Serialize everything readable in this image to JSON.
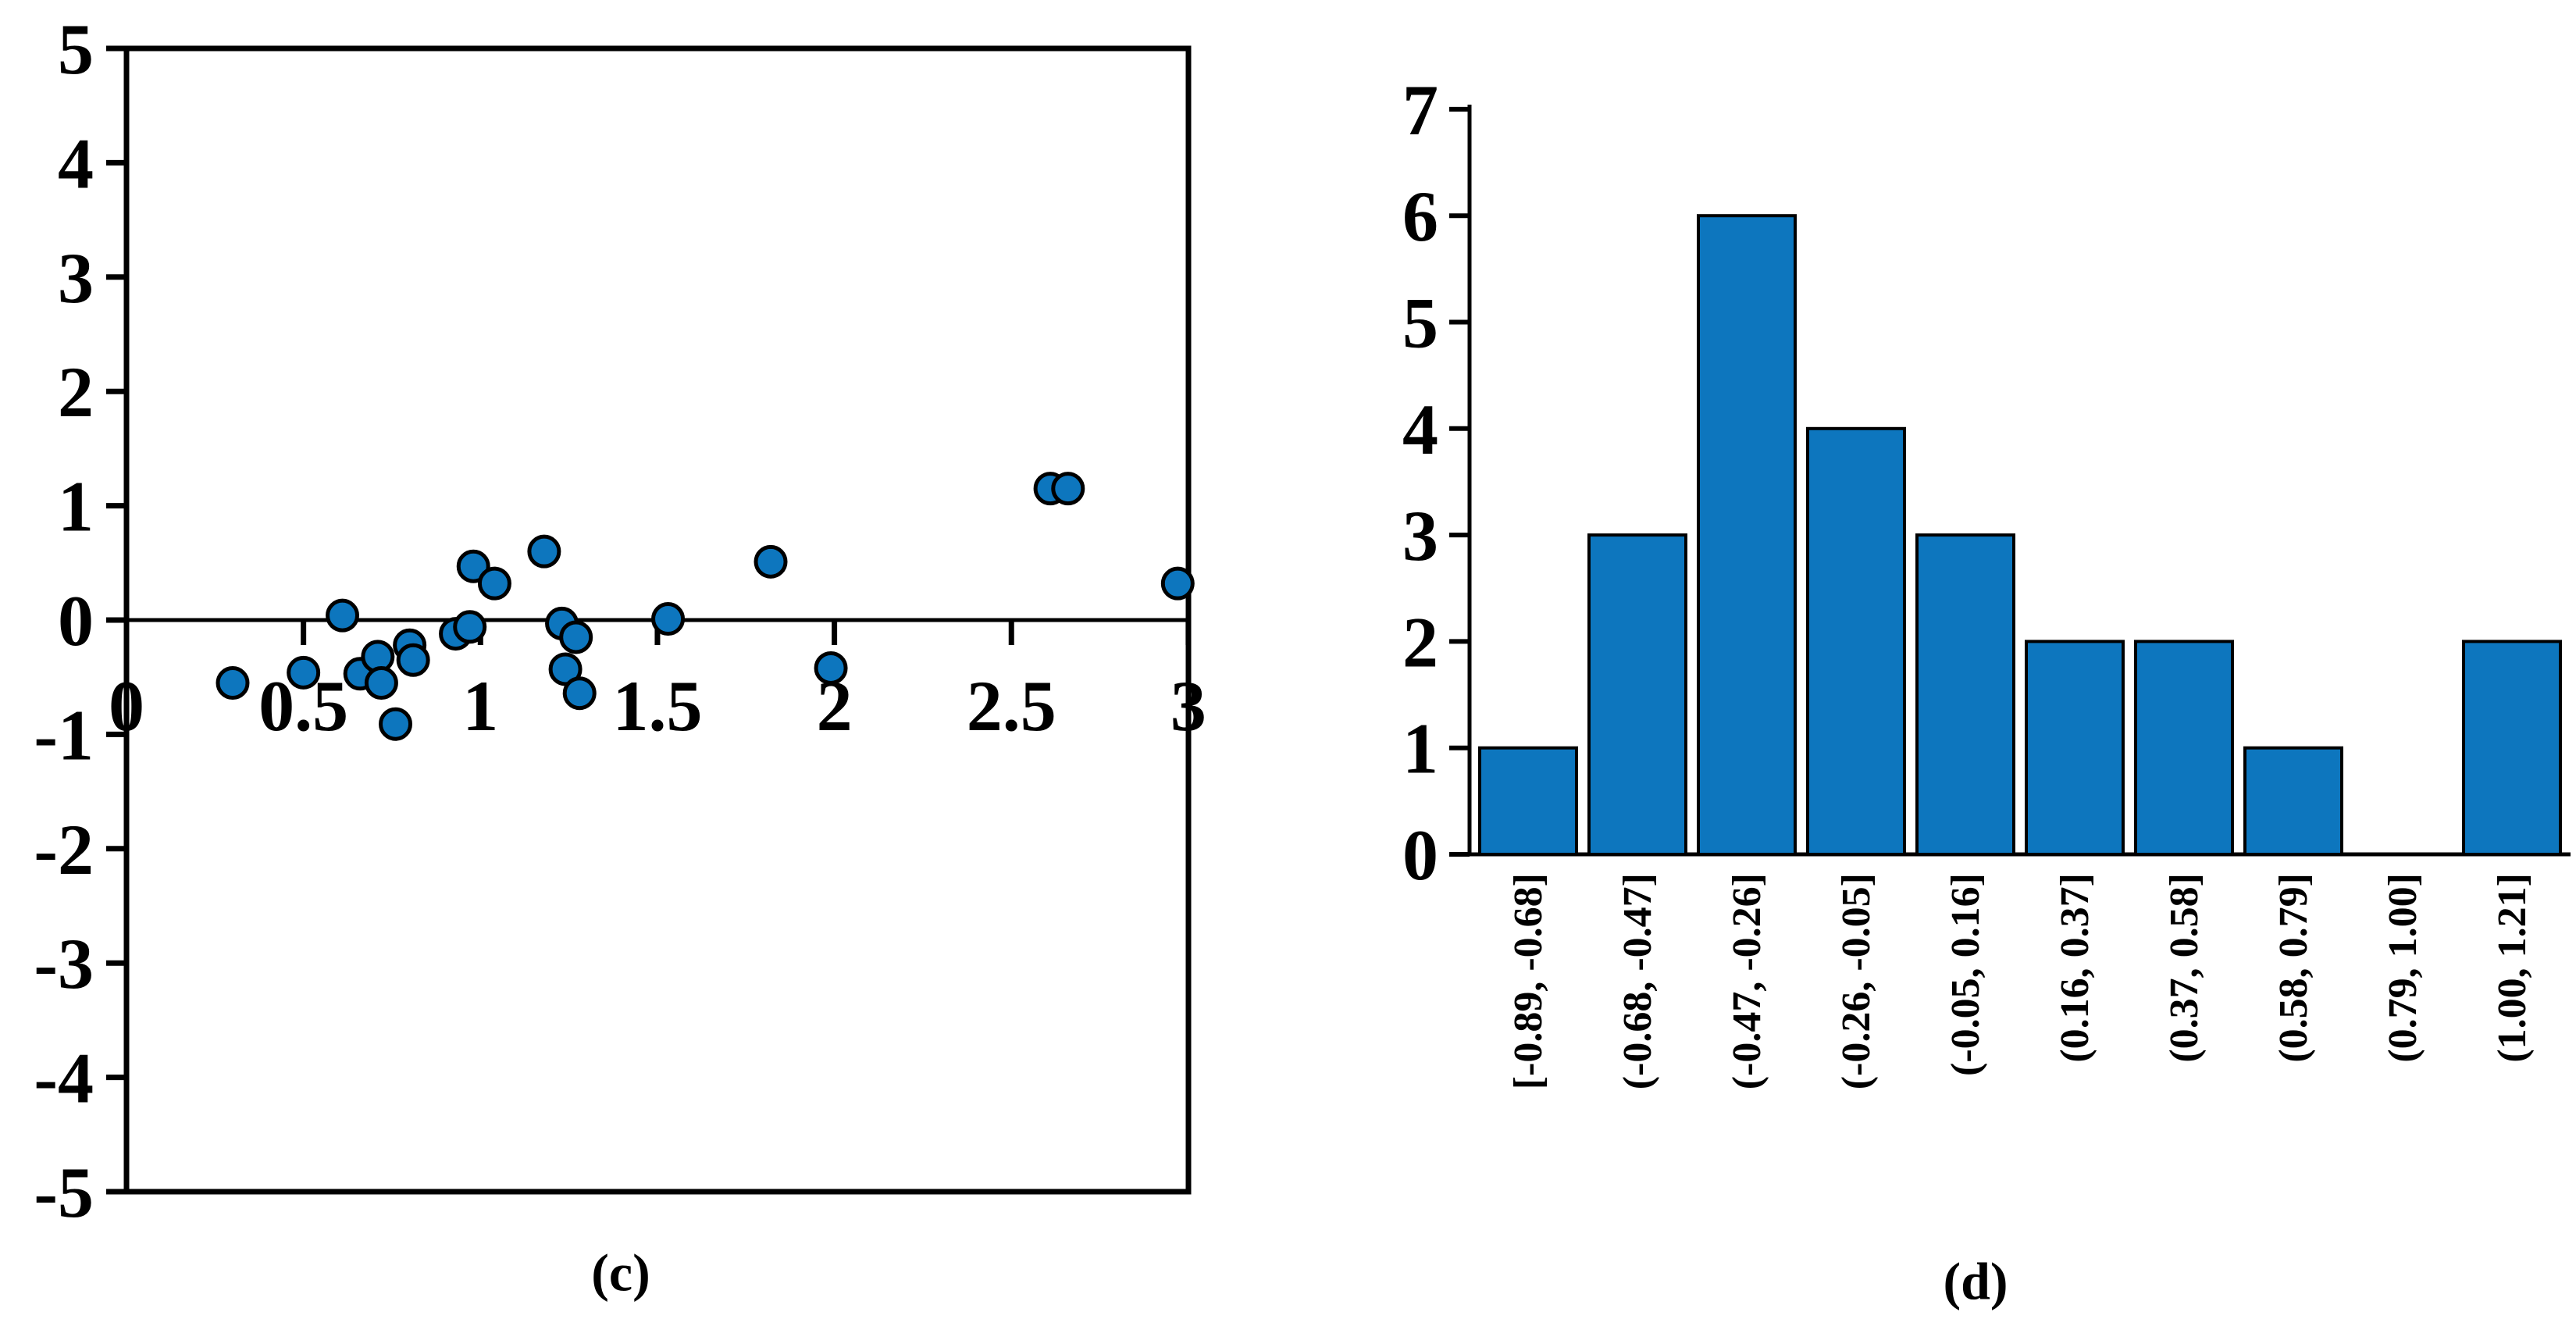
{
  "figure": {
    "background": "#ffffff",
    "captions": {
      "c": "(c)",
      "d": "(d)"
    }
  },
  "colors": {
    "data_blue": "#0D76BE",
    "outline": "#000000",
    "axis": "#000000"
  },
  "chart_data": [
    {
      "type": "scatter",
      "panel": "c",
      "title": "",
      "xlabel": "",
      "ylabel": "",
      "xlim": [
        0,
        3
      ],
      "ylim": [
        -5,
        5
      ],
      "grid": false,
      "frame": "box",
      "zero_line": true,
      "marker": "circle",
      "marker_color": "#0D76BE",
      "marker_edge_color": "#000000",
      "x_ticks": [
        0,
        0.5,
        1,
        1.5,
        2,
        2.5,
        3
      ],
      "x_tick_labels": [
        "0",
        "0.5",
        "1",
        "1.5",
        "2",
        "2.5",
        "3"
      ],
      "y_ticks": [
        5,
        4,
        3,
        2,
        1,
        0,
        -1,
        -2,
        -3,
        -4,
        -5
      ],
      "y_tick_labels": [
        "5",
        "4",
        "3",
        "2",
        "1",
        "0",
        "-1",
        "-2",
        "-3",
        "-4",
        "-5"
      ],
      "points": [
        [
          0.3,
          -0.55
        ],
        [
          0.5,
          -0.46
        ],
        [
          0.61,
          0.04
        ],
        [
          0.66,
          -0.47
        ],
        [
          0.71,
          -0.32
        ],
        [
          0.72,
          -0.55
        ],
        [
          0.8,
          -0.22
        ],
        [
          0.81,
          -0.35
        ],
        [
          0.76,
          -0.91
        ],
        [
          0.93,
          -0.12
        ],
        [
          0.97,
          -0.06
        ],
        [
          0.98,
          0.47
        ],
        [
          1.04,
          0.32
        ],
        [
          1.18,
          0.6
        ],
        [
          1.23,
          -0.03
        ],
        [
          1.27,
          -0.15
        ],
        [
          1.24,
          -0.43
        ],
        [
          1.28,
          -0.64
        ],
        [
          1.53,
          0.01
        ],
        [
          1.82,
          0.51
        ],
        [
          1.99,
          -0.42
        ],
        [
          2.61,
          1.15
        ],
        [
          2.66,
          1.15
        ],
        [
          2.97,
          0.32
        ]
      ]
    },
    {
      "type": "bar",
      "panel": "d",
      "title": "",
      "xlabel": "",
      "ylabel": "",
      "ylim": [
        0,
        7
      ],
      "grid": false,
      "bar_color": "#0D76BE",
      "bar_edge_color": "#000000",
      "y_ticks": [
        0,
        1,
        2,
        3,
        4,
        5,
        6,
        7
      ],
      "y_tick_labels": [
        "0",
        "1",
        "2",
        "3",
        "4",
        "5",
        "6",
        "7"
      ],
      "categories": [
        "[-0.89, -0.68]",
        "(-0.68, -0.47]",
        "(-0.47, -0.26]",
        "(-0.26, -0.05]",
        "(-0.05, 0.16]",
        "(0.16, 0.37]",
        "(0.37, 0.58]",
        "(0.58, 0.79]",
        "(0.79, 1.00]",
        "(1.00, 1.21]"
      ],
      "values": [
        1,
        3,
        6,
        4,
        3,
        2,
        2,
        1,
        0,
        2
      ]
    }
  ]
}
